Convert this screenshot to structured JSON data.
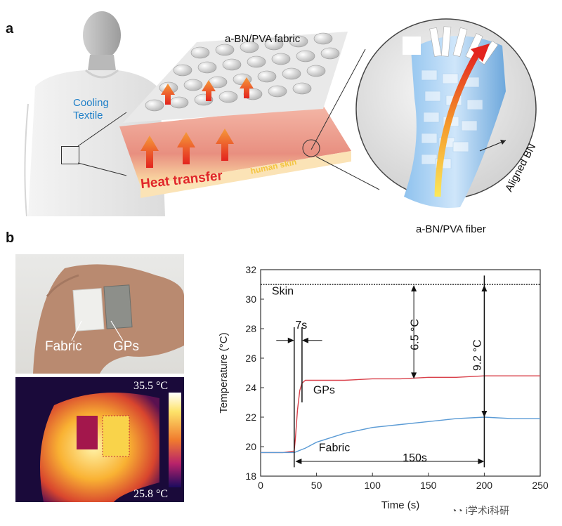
{
  "panel_a": {
    "letter": "a",
    "cooling_textile": "Cooling Textile",
    "fabric_label": "a-BN/PVA fabric",
    "heat_transfer": "Heat transfer",
    "human_skin": "human skin",
    "aligned_bn": "Aligned BN",
    "fiber_label": "a-BN/PVA fiber"
  },
  "panel_b": {
    "letter": "b",
    "photo_labels": {
      "fabric": "Fabric",
      "gps": "GPs"
    },
    "thermal": {
      "max": "35.5 °C",
      "min": "25.8 °C"
    }
  },
  "chart_data": {
    "type": "line",
    "xlabel": "Time (s)",
    "ylabel": "Temperature (°C)",
    "xlim": [
      0,
      250
    ],
    "ylim": [
      18,
      32
    ],
    "xticks": [
      0,
      50,
      100,
      150,
      200,
      250
    ],
    "yticks": [
      18,
      20,
      22,
      24,
      26,
      28,
      30,
      32
    ],
    "series": [
      {
        "name": "Skin",
        "color": "#222222",
        "x": [
          0,
          10,
          20,
          30,
          50,
          100,
          150,
          200,
          250
        ],
        "y": [
          31.0,
          31.0,
          31.0,
          31.0,
          31.0,
          31.0,
          31.0,
          31.0,
          31.0
        ]
      },
      {
        "name": "GPs",
        "color": "#d9404a",
        "x": [
          0,
          20,
          30,
          31,
          33,
          35,
          37,
          40,
          50,
          75,
          100,
          125,
          150,
          175,
          200,
          225,
          250
        ],
        "y": [
          19.6,
          19.6,
          19.7,
          20.5,
          22.5,
          23.8,
          24.3,
          24.5,
          24.5,
          24.5,
          24.6,
          24.6,
          24.7,
          24.7,
          24.8,
          24.8,
          24.8
        ]
      },
      {
        "name": "Fabric",
        "color": "#5b9bd5",
        "x": [
          0,
          20,
          30,
          40,
          50,
          75,
          100,
          125,
          150,
          175,
          200,
          225,
          250
        ],
        "y": [
          19.6,
          19.6,
          19.6,
          19.9,
          20.3,
          20.9,
          21.3,
          21.5,
          21.7,
          21.9,
          22.0,
          21.9,
          21.9
        ]
      }
    ],
    "annotations": [
      {
        "text": "Skin",
        "x": 10,
        "y": 30.3
      },
      {
        "text": "GPs",
        "x": 47,
        "y": 23.6
      },
      {
        "text": "Fabric",
        "x": 52,
        "y": 19.7
      },
      {
        "text": "7s",
        "x": 31,
        "y": 28.0
      },
      {
        "text": "150s",
        "x": 127,
        "y": 19.0
      },
      {
        "text": "6.5 °C",
        "x": 141,
        "y": 27.6
      },
      {
        "text": "9.2 °C",
        "x": 197,
        "y": 26.2
      }
    ]
  },
  "watermark": "i学术i科研"
}
